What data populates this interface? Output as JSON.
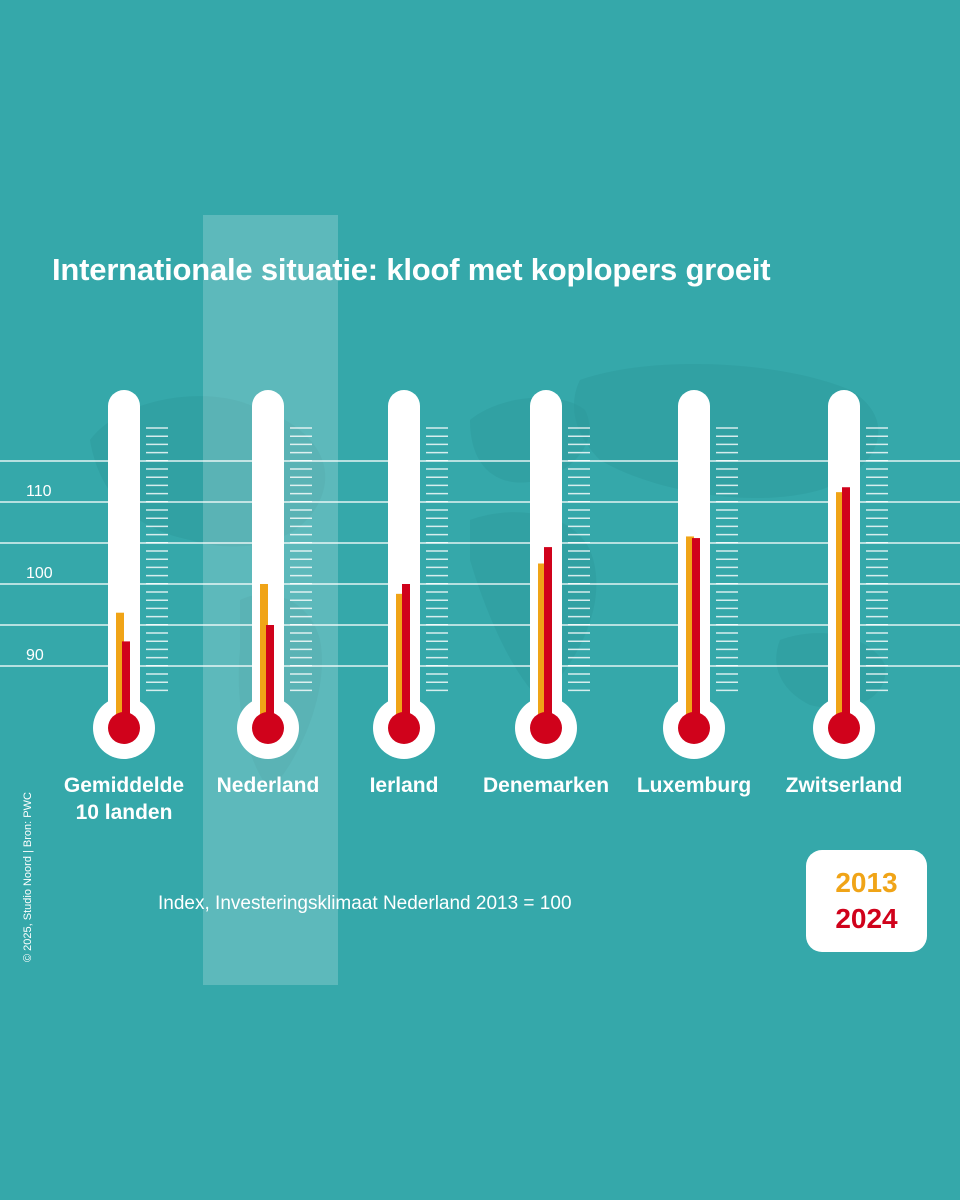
{
  "title": "Internationale situatie: kloof met koplopers groeit",
  "index_note": "Index, Investeringsklimaat Nederland 2013 = 100",
  "credit": "© 2025, Studio Noord | Bron: PWC",
  "colors": {
    "background": "#35a8aa",
    "series_2013": "#f0a417",
    "series_2024": "#d0021b",
    "tube": "#ffffff"
  },
  "chart_data": {
    "type": "bar",
    "style": "thermometer",
    "title": "Internationale situatie: kloof met koplopers groeit",
    "ylabel": "Index, Investeringsklimaat Nederland 2013 = 100",
    "ylim": [
      80,
      120
    ],
    "yticks": [
      90,
      100,
      110
    ],
    "gridlines": [
      90,
      95,
      100,
      105,
      110,
      115
    ],
    "highlight_category": "Nederland",
    "categories": [
      "Gemiddelde 10 landen",
      "Nederland",
      "Ierland",
      "Denemarken",
      "Luxemburg",
      "Zwitserland"
    ],
    "category_labels": [
      [
        "Gemiddelde",
        "10 landen"
      ],
      [
        "Nederland"
      ],
      [
        "Ierland"
      ],
      [
        "Denemarken"
      ],
      [
        "Luxemburg"
      ],
      [
        "Zwitserland"
      ]
    ],
    "series": [
      {
        "name": "2013",
        "color": "#f0a417",
        "values": [
          96.5,
          100,
          98.8,
          102.5,
          105.8,
          111.2
        ]
      },
      {
        "name": "2024",
        "color": "#d0021b",
        "values": [
          93,
          95,
          100,
          104.5,
          105.6,
          111.8
        ]
      }
    ],
    "legend": {
      "position": "bottom-right",
      "labels": [
        "2013",
        "2024"
      ]
    }
  }
}
